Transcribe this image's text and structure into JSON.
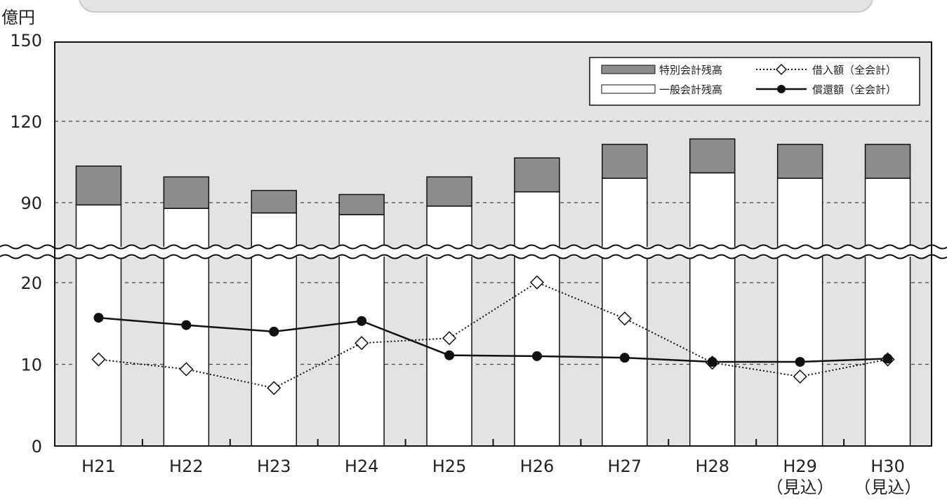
{
  "chart_data": {
    "type": "bar",
    "y_unit": "億円",
    "categories": [
      "H21",
      "H22",
      "H23",
      "H24",
      "H25",
      "H26",
      "H27",
      "H28",
      "H29",
      "H30"
    ],
    "category_sublabels": [
      "",
      "",
      "",
      "",
      "",
      "",
      "",
      "",
      "（見込）",
      "（見込）"
    ],
    "series": [
      {
        "name": "一般会計残高",
        "kind": "bar-stack-bottom",
        "values": [
          88,
          85,
          81,
          79.5,
          87,
          94,
          99,
          101,
          99,
          99
        ]
      },
      {
        "name": "特別会計残高",
        "kind": "bar-stack-top",
        "values": [
          15.5,
          14.5,
          13.5,
          13.5,
          12.5,
          12.5,
          12.5,
          12.5,
          12.5,
          12.5
        ]
      },
      {
        "name": "借入額（全会計）",
        "kind": "line-dotted-diamond",
        "values": [
          10.6,
          9.4,
          7.1,
          12.6,
          13.2,
          20.2,
          15.6,
          10.2,
          8.5,
          10.6
        ]
      },
      {
        "name": "償還額（全会計）",
        "kind": "line-solid-dot",
        "values": [
          15.7,
          14.8,
          14.0,
          15.3,
          11.1,
          11.0,
          10.8,
          10.3,
          10.3,
          10.7
        ]
      }
    ],
    "y_ticks": [
      "0",
      "10",
      "20",
      "90",
      "120",
      "150"
    ],
    "axis_break": {
      "between": [
        20,
        90
      ],
      "lower_range": [
        0,
        20
      ],
      "upper_range": [
        90,
        150
      ]
    },
    "grid": true,
    "legend_position": "top-right",
    "colors": {
      "plot_background": "#e3e3e3",
      "bar_top": "#8c8c8c",
      "bar_bottom": "#ffffff",
      "axis": "#111111",
      "line": "#111111"
    }
  }
}
